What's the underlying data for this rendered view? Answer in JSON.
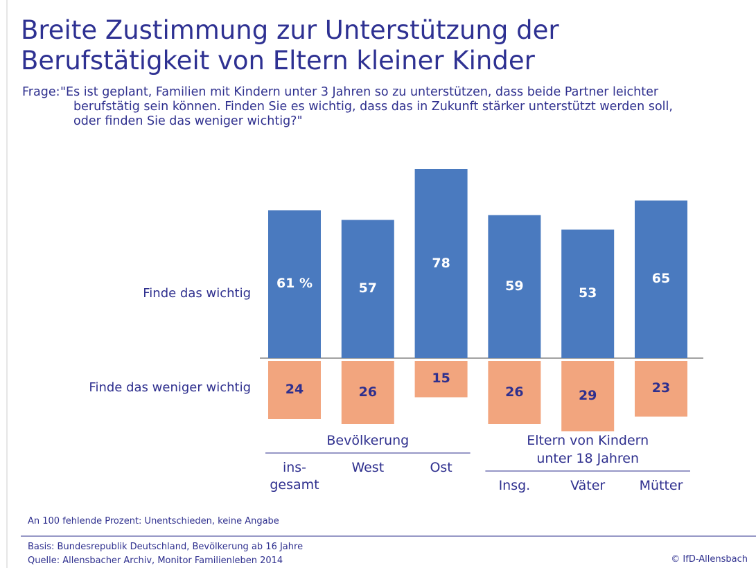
{
  "chart_data": {
    "type": "diverging-bar",
    "title": "Breite Zustimmung zur Unterstützung der\nBerufstätigkeit von Eltern kleiner Kinder",
    "question_label": "Frage:",
    "question": "\"Es ist geplant, Familien mit Kindern unter 3 Jahren so zu unterstützen, dass beide Partner leichter\nberufstätig sein können. Finden Sie es wichtig, dass das in Zukunft stärker unterstützt werden soll,\noder finden Sie das weniger wichtig?\"",
    "groups": [
      {
        "label": "Bevölkerung",
        "categories": [
          "ins-\ngesamt",
          "West",
          "Ost"
        ]
      },
      {
        "label": "Eltern von Kindern\nunter 18 Jahren",
        "categories": [
          "Insg.",
          "Väter",
          "Mütter"
        ]
      }
    ],
    "series": [
      {
        "name": "Finde das wichtig",
        "color": "#4a7abf",
        "direction": "up",
        "values": [
          61,
          57,
          78,
          59,
          53,
          65
        ],
        "value_labels": [
          "61 %",
          "57",
          "78",
          "59",
          "53",
          "65"
        ]
      },
      {
        "name": "Finde das weniger wichtig",
        "color": "#f2a57e",
        "direction": "down",
        "values": [
          24,
          26,
          15,
          26,
          29,
          23
        ]
      }
    ],
    "note": "An 100 fehlende Prozent: Unentschieden, keine Angabe",
    "source": "Basis: Bundesrepublik Deutschland, Bevölkerung ab 16 Jahre\nQuelle: Allensbacher Archiv, Monitor Familienleben 2014",
    "copyright": "© IfD-Allensbach"
  }
}
